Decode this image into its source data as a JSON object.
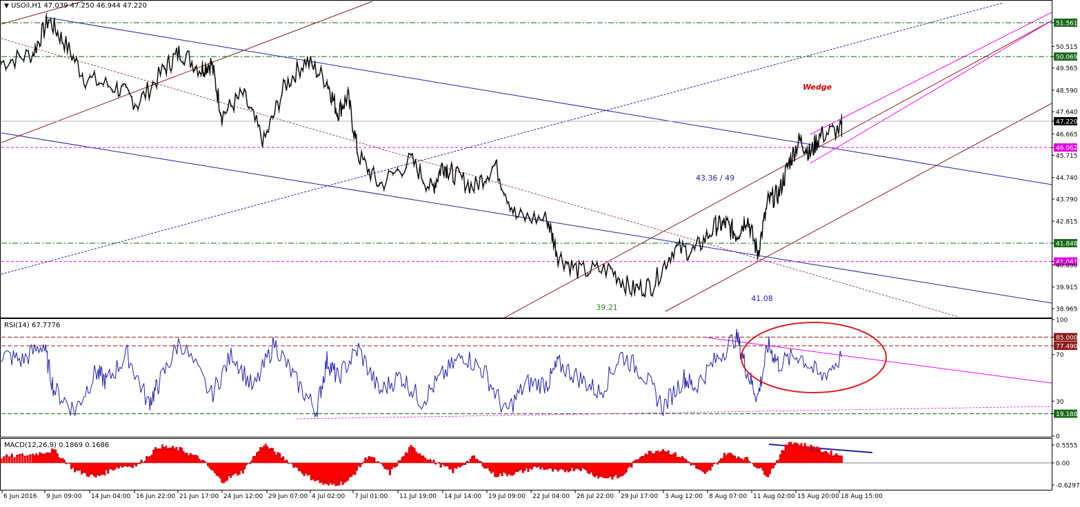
{
  "header": {
    "price": "USOil,H1  47.039 47.250 46.944 47.220",
    "rsi": "RSI(14) 67.7776",
    "macd": "MACD(12,26,9) 0.1869 0.1686"
  },
  "colors": {
    "candles": "#000000",
    "regression_channel": "#1f1fa0",
    "brown_channel": "#8b1a1a",
    "magenta": "#ff00ff",
    "level_green": "#006400",
    "rsi_line": "#1f1fa0",
    "macd_hist": "#ff0000",
    "ellipse": "#d62020"
  },
  "chart_data": [
    {
      "type": "line",
      "title": "USOil,H1",
      "ylim": [
        38.6,
        52.5
      ],
      "y_ticks": [
        "51.561",
        "50.515",
        "50.069",
        "49.565",
        "48.590",
        "47.640",
        "47.220",
        "46.665",
        "46.062",
        "45.715",
        "44.740",
        "43.790",
        "42.815",
        "41.848",
        "41.041",
        "40.890",
        "39.915",
        "38.965"
      ],
      "highlighted_levels": [
        {
          "label": "51.561",
          "value": 51.561,
          "style": "green-dashdot"
        },
        {
          "label": "50.069",
          "value": 50.069,
          "style": "green-dashdot"
        },
        {
          "label": "47.220",
          "value": 47.22,
          "style": "current-price"
        },
        {
          "label": "46.062",
          "value": 46.062,
          "style": "magenta-dashed"
        },
        {
          "label": "41.848",
          "value": 41.848,
          "style": "green-dashdot"
        },
        {
          "label": "41.041",
          "value": 41.041,
          "style": "magenta-dashed"
        }
      ],
      "annotations": [
        {
          "text": "Wedge",
          "color": "#cc0000"
        },
        {
          "text": "43.36 / 49",
          "color": "#1f1fa0"
        },
        {
          "text": "39.21",
          "color": "#2a8a2a"
        },
        {
          "text": "41.08",
          "color": "#1f1fa0"
        }
      ],
      "series": [
        {
          "x": [
            0,
            0.03,
            0.045,
            0.06,
            0.08,
            0.11,
            0.13,
            0.155,
            0.17,
            0.19,
            0.2,
            0.21,
            0.23,
            0.25,
            0.27,
            0.29,
            0.31,
            0.32,
            0.33,
            0.34,
            0.36,
            0.39,
            0.41,
            0.42,
            0.43,
            0.45,
            0.47,
            0.49,
            0.52,
            0.53,
            0.55,
            0.58,
            0.6,
            0.62,
            0.64,
            0.66,
            0.68,
            0.69,
            0.7,
            0.71,
            0.72,
            0.73,
            0.74,
            0.75,
            0.76,
            0.77,
            0.78,
            0.8,
            0.8
          ],
          "values": [
            49.8,
            50.2,
            51.7,
            50.7,
            49.1,
            48.7,
            48.0,
            49.5,
            50.3,
            49.5,
            49.8,
            47.5,
            48.4,
            46.3,
            48.8,
            49.9,
            49.0,
            47.6,
            48.3,
            45.7,
            44.4,
            45.5,
            44.2,
            45.3,
            44.9,
            44.3,
            45.3,
            43.0,
            42.9,
            41.3,
            40.6,
            40.7,
            39.8,
            40.0,
            41.6,
            41.5,
            42.6,
            42.7,
            42.2,
            43.0,
            41.4,
            43.7,
            44.0,
            45.4,
            46.4,
            45.8,
            46.6,
            46.9,
            47.22
          ]
        }
      ]
    },
    {
      "type": "line",
      "title": "RSI(14) 67.7776",
      "ylim": [
        0,
        100
      ],
      "y_ticks": [
        "100",
        "85.0000",
        "77.4908",
        "70",
        "30",
        "19.1882",
        "0"
      ],
      "levels": [
        85.0,
        77.4908,
        19.1882
      ],
      "series": [
        {
          "x": [
            0,
            0.02,
            0.04,
            0.05,
            0.07,
            0.09,
            0.1,
            0.12,
            0.14,
            0.15,
            0.17,
            0.2,
            0.22,
            0.24,
            0.26,
            0.28,
            0.3,
            0.31,
            0.32,
            0.34,
            0.36,
            0.38,
            0.4,
            0.42,
            0.44,
            0.46,
            0.48,
            0.5,
            0.52,
            0.53,
            0.55,
            0.57,
            0.59,
            0.61,
            0.63,
            0.65,
            0.66,
            0.68,
            0.7,
            0.71,
            0.72,
            0.73,
            0.74,
            0.76,
            0.78,
            0.8
          ],
          "values": [
            70,
            65,
            79,
            40,
            22,
            55,
            47,
            70,
            28,
            45,
            82,
            35,
            71,
            40,
            80,
            48,
            22,
            65,
            50,
            75,
            38,
            52,
            30,
            52,
            70,
            55,
            20,
            45,
            45,
            62,
            50,
            37,
            70,
            55,
            25,
            50,
            42,
            65,
            86,
            55,
            33,
            78,
            62,
            70,
            50,
            67.7776
          ]
        }
      ]
    },
    {
      "type": "bar",
      "title": "MACD(12,26,9) 0.1869 0.1686",
      "ylim": [
        -0.6297,
        0.5555
      ],
      "y_ticks": [
        "0.5555",
        "0.00",
        "-0.6297"
      ],
      "series": [
        {
          "x": [
            0,
            0.03,
            0.05,
            0.07,
            0.09,
            0.11,
            0.13,
            0.15,
            0.17,
            0.19,
            0.21,
            0.23,
            0.25,
            0.27,
            0.29,
            0.31,
            0.33,
            0.35,
            0.37,
            0.39,
            0.41,
            0.43,
            0.45,
            0.47,
            0.49,
            0.51,
            0.53,
            0.55,
            0.57,
            0.59,
            0.61,
            0.63,
            0.65,
            0.67,
            0.69,
            0.71,
            0.73,
            0.75,
            0.77,
            0.78,
            0.8
          ],
          "values": [
            0.15,
            0.22,
            0.32,
            -0.18,
            -0.35,
            -0.1,
            -0.05,
            0.42,
            0.35,
            0.1,
            -0.45,
            -0.2,
            0.48,
            0.1,
            -0.3,
            -0.55,
            -0.45,
            0.2,
            -0.25,
            0.4,
            0.05,
            -0.2,
            0.15,
            -0.3,
            -0.25,
            -0.1,
            -0.22,
            -0.12,
            -0.35,
            -0.35,
            0.22,
            0.35,
            0.12,
            -0.3,
            0.25,
            0.1,
            -0.3,
            0.55,
            0.42,
            0.32,
            0.1869
          ]
        }
      ]
    }
  ],
  "time_axis": [
    "6 Jun 2016",
    "9 Jun 09:00",
    "14 Jun 04:00",
    "16 Jun 22:00",
    "21 Jun 17:00",
    "24 Jun 12:00",
    "29 Jun 07:00",
    "4 Jul 02:00",
    "7 Jul 01:00",
    "11 Jul 19:00",
    "14 Jul 14:00",
    "19 Jul 09:00",
    "22 Jul 04:00",
    "26 Jul 22:00",
    "29 Jul 17:00",
    "3 Aug 12:00",
    "8 Aug 07:00",
    "11 Aug 02:00",
    "15 Aug 20:00",
    "18 Aug 15:00"
  ]
}
